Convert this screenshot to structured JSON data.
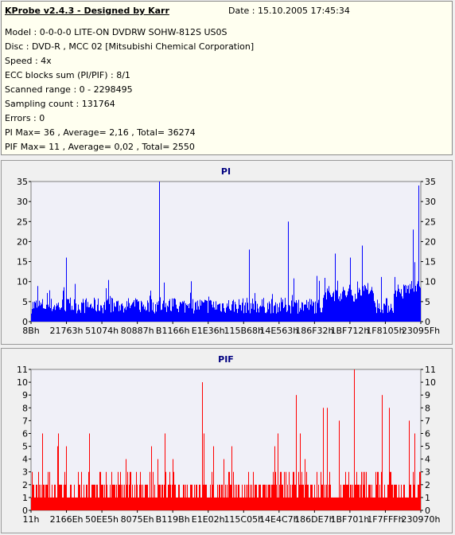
{
  "header": {
    "title": "KProbe v2.4.3 - Designed by Karr",
    "date": "Date : 15.10.2005 17:45:34",
    "lines": [
      "Model : 0-0-0-0 LITE-ON DVDRW SOHW-812S  US0S",
      "Disc : DVD-R , MCC 02 [Mitsubishi Chemical Corporation]",
      "Speed : 4x",
      "ECC blocks sum (PI/PIF) : 8/1",
      "Scanned range : 0 - 2298495",
      "Sampling count : 131764",
      "Errors : 0",
      "PI Max= 36 , Average= 2,16 , Total= 36274",
      "PIF Max= 11 , Average= 0,02 , Total= 2550"
    ]
  },
  "colors": {
    "pi": "#0000ff",
    "pif": "#ff0000",
    "plot_bg": "#f0f0f8",
    "title": "#000080",
    "pif_title": "#000080"
  },
  "chart_data": [
    {
      "type": "bar",
      "title": "PI",
      "ylim": [
        0,
        35
      ],
      "yticks": [
        0,
        5,
        10,
        15,
        20,
        25,
        30,
        35
      ],
      "xticks": [
        "8Bh",
        "21763h",
        "51074h",
        "80887h",
        "B1166h",
        "E1E36h",
        "115B68h",
        "14E563h",
        "186F32h",
        "1BF712h",
        "1F8105h",
        "23095Fh"
      ],
      "grid": false,
      "baseline": 4,
      "spikes": [
        {
          "pos": 0.09,
          "value": 16
        },
        {
          "pos": 0.33,
          "value": 36
        },
        {
          "pos": 0.56,
          "value": 18
        },
        {
          "pos": 0.66,
          "value": 25
        },
        {
          "pos": 0.78,
          "value": 17
        },
        {
          "pos": 0.82,
          "value": 16
        },
        {
          "pos": 0.85,
          "value": 19
        },
        {
          "pos": 0.98,
          "value": 23
        },
        {
          "pos": 0.995,
          "value": 34
        }
      ]
    },
    {
      "type": "bar",
      "title": "PIF",
      "ylim": [
        0,
        11
      ],
      "yticks": [
        0,
        1,
        2,
        3,
        4,
        5,
        6,
        7,
        8,
        9,
        10,
        11
      ],
      "xticks": [
        "11h",
        "2166Eh",
        "50EE5h",
        "8075Eh",
        "B119Bh",
        "E1E02h",
        "115C05h",
        "14E4C7h",
        "186DE7h",
        "1BF701h",
        "1F7FFFh",
        "230970h"
      ],
      "grid": false,
      "baseline": 2,
      "spikes": [
        {
          "pos": 0.09,
          "value": 5
        },
        {
          "pos": 0.31,
          "value": 5
        },
        {
          "pos": 0.44,
          "value": 10
        },
        {
          "pos": 0.68,
          "value": 9
        },
        {
          "pos": 0.75,
          "value": 8
        },
        {
          "pos": 0.76,
          "value": 8
        },
        {
          "pos": 0.79,
          "value": 7
        },
        {
          "pos": 0.83,
          "value": 11
        },
        {
          "pos": 0.9,
          "value": 9
        },
        {
          "pos": 0.92,
          "value": 8
        },
        {
          "pos": 0.97,
          "value": 7
        }
      ]
    }
  ]
}
